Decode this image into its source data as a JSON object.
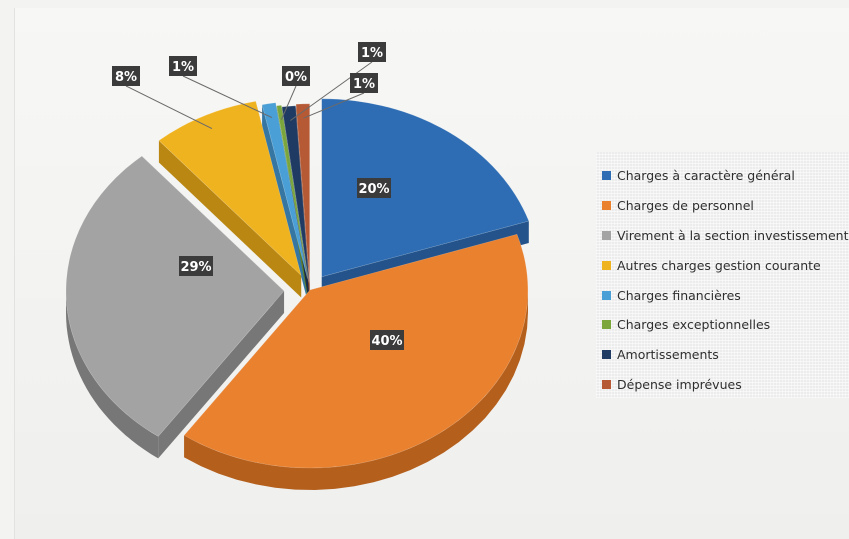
{
  "chart_data": {
    "type": "pie",
    "title": "",
    "legend_position": "right",
    "series": [
      {
        "name": "",
        "labels": [
          "Charges à caractère général",
          "Charges de personnel",
          "Virement à la section investissement",
          "Autres charges gestion courante",
          "Charges financières",
          "Charges exceptionnelles",
          "Amortissements",
          "Dépense imprévues"
        ],
        "values": [
          20,
          40,
          29,
          8,
          1,
          0,
          1,
          1
        ]
      }
    ],
    "slices": [
      {
        "label": "Charges à caractère général",
        "value": 20,
        "display": "20%",
        "color": "#2e6db4",
        "side": "#23538a"
      },
      {
        "label": "Charges de personnel",
        "value": 40,
        "display": "40%",
        "color": "#e9812f",
        "side": "#b45f1c"
      },
      {
        "label": "Virement à la section investissement",
        "value": 29,
        "display": "29%",
        "color": "#a3a3a3",
        "side": "#777777"
      },
      {
        "label": "Autres charges gestion courante",
        "value": 8,
        "display": "8%",
        "color": "#f0b320",
        "side": "#b98712"
      },
      {
        "label": "Charges financières",
        "value": 1,
        "display": "1%",
        "color": "#4a9fd6",
        "side": "#3576a2"
      },
      {
        "label": "Charges exceptionnelles",
        "value": 0,
        "display": "0%",
        "color": "#7aa63c",
        "side": "#5a7e2a"
      },
      {
        "label": "Amortissements",
        "value": 1,
        "display": "1%",
        "color": "#1f3b63",
        "side": "#152a47"
      },
      {
        "label": "Dépense imprévues",
        "value": 1,
        "display": "1%",
        "color": "#b55a35",
        "side": "#863f24"
      }
    ]
  }
}
